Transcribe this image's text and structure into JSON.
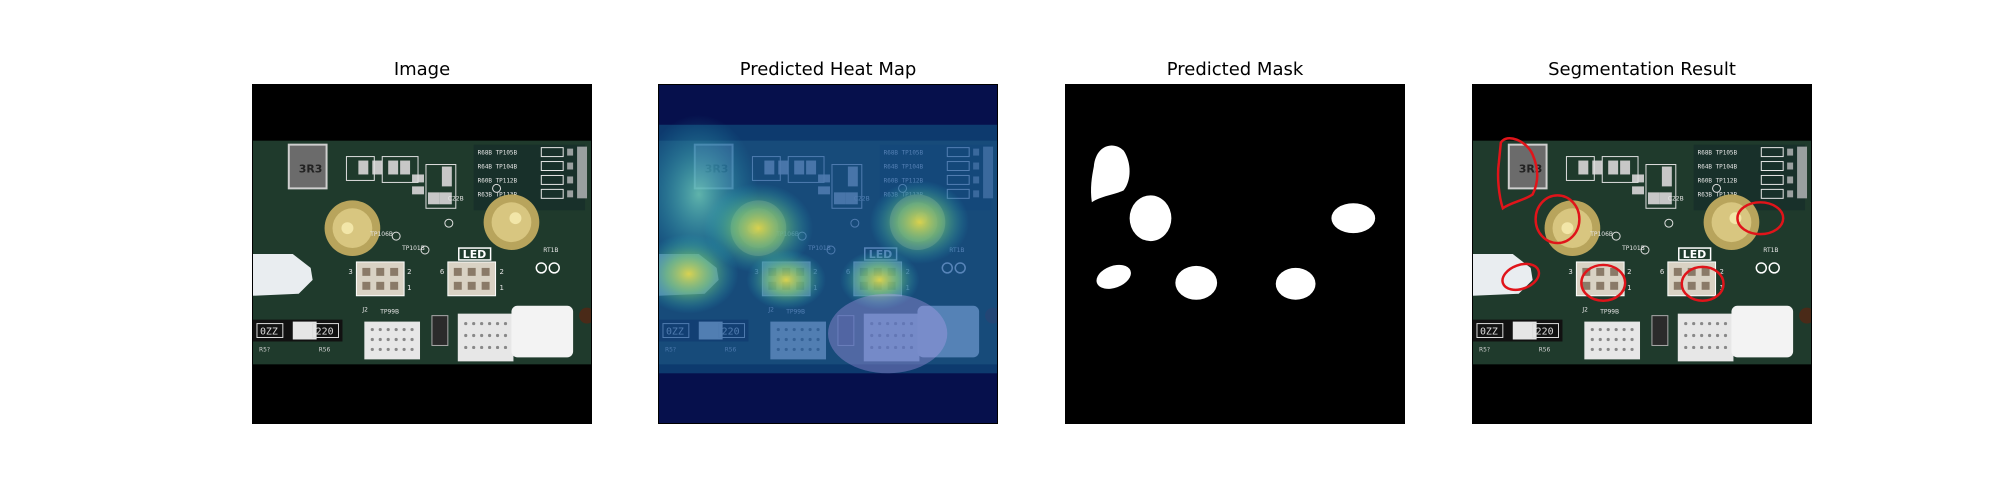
{
  "panels": [
    {
      "title": "Image"
    },
    {
      "title": "Predicted Heat Map"
    },
    {
      "title": "Predicted Mask"
    },
    {
      "title": "Segmentation Result"
    }
  ],
  "board": {
    "inductor_marking": "3R3",
    "small_labels": [
      "R68B",
      "TP105B",
      "R64B",
      "TP104B",
      "R60B",
      "TP112B",
      "R63B",
      "TP113B",
      "TP106B",
      "TP108B",
      "D8",
      "TP101B",
      "C22B",
      "RT1B",
      "J1",
      "J2",
      "TP99B",
      "R5?",
      "R56"
    ],
    "led_label": "LED",
    "resistor_codes": [
      "0ZZ",
      "220"
    ],
    "header_numbers": [
      "3",
      "2",
      "1",
      "6",
      "2",
      "1"
    ]
  },
  "colors": {
    "board_green": "#1f3a2c",
    "solder_gold": "#c9b56a",
    "contour_red": "#e0141a",
    "heatmap_blue": "#0b1e8a",
    "heatmap_cyan": "#22b0c4",
    "heatmap_yellow": "#f0e040"
  }
}
